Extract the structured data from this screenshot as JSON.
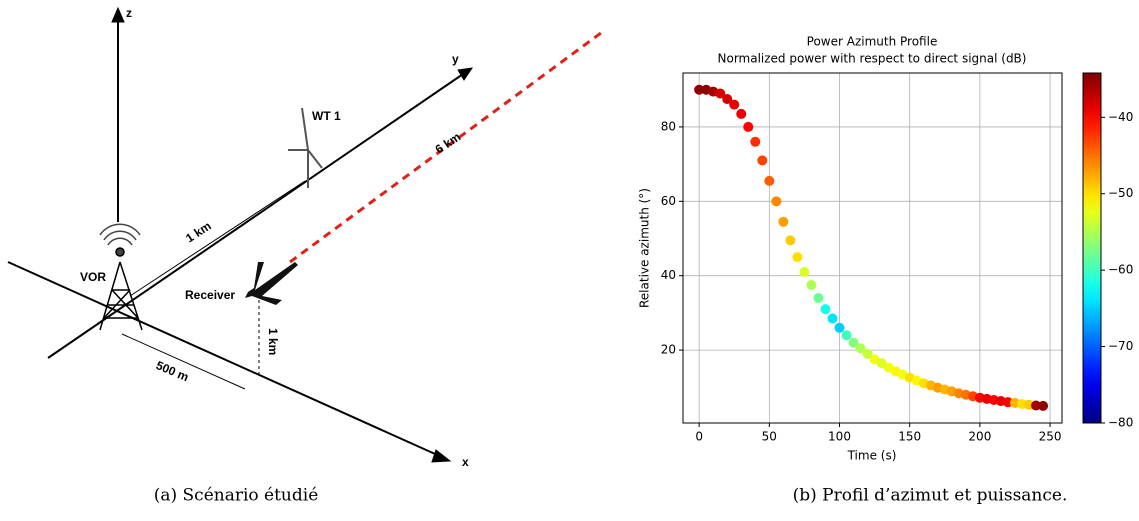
{
  "diagram": {
    "z_axis": "z",
    "y_axis": "y",
    "x_axis": "x",
    "turbine": "WT 1",
    "range": "6 km",
    "turbine_distance": "1 km",
    "beacon": "VOR",
    "receiver": "Receiver",
    "offset": "500 m",
    "altitude": "1 km"
  },
  "captions": [
    "(a) Scénario étudié",
    "(b) Profil d’azimut et puissance."
  ],
  "chart_data": {
    "type": "scatter",
    "title": "Power Azimuth Profile",
    "subtitle": "Normalized power with respect to direct signal (dB)",
    "xlabel": "Time (s)",
    "ylabel": "Relative azimuth (°)",
    "colormap": "jet",
    "grid": true,
    "xlim": [
      -11.5,
      258.5
    ],
    "xticks": [
      0,
      50,
      100,
      150,
      200,
      250
    ],
    "ylim": [
      0.4,
      94.5
    ],
    "yticks": [
      20,
      40,
      60,
      80
    ],
    "clim": [
      -80,
      -34.2
    ],
    "cticks": [
      {
        "value": -40,
        "label": "−40"
      },
      {
        "value": -50,
        "label": "−50"
      },
      {
        "value": -60,
        "label": "−60"
      },
      {
        "value": -70,
        "label": "−70"
      },
      {
        "value": -80,
        "label": "−80"
      }
    ],
    "x": [
      0,
      5,
      10,
      15,
      20,
      25,
      30,
      35,
      40,
      45,
      50,
      55,
      60,
      65,
      70,
      75,
      80,
      85,
      90,
      95,
      100,
      105,
      110,
      115,
      120,
      125,
      130,
      135,
      140,
      145,
      150,
      155,
      160,
      165,
      170,
      175,
      180,
      185,
      190,
      195,
      200,
      205,
      210,
      215,
      220,
      225,
      230,
      235,
      240,
      245
    ],
    "y": [
      90,
      90,
      89.5,
      89,
      87.5,
      86,
      83.5,
      80,
      76,
      71,
      65.5,
      60,
      54.5,
      49.5,
      45,
      41,
      37.5,
      34,
      31,
      28.5,
      26,
      24,
      22,
      20.5,
      19,
      17.5,
      16.5,
      15.3,
      14.3,
      13.4,
      12.6,
      11.8,
      11.1,
      10.5,
      9.9,
      9.4,
      8.9,
      8.4,
      8,
      7.6,
      7.2,
      6.9,
      6.6,
      6.3,
      6,
      5.8,
      5.5,
      5.3,
      5.1,
      5
    ],
    "power": [
      -35,
      -35,
      -36,
      -38,
      -38,
      -39,
      -39,
      -40,
      -42,
      -43,
      -44,
      -46,
      -47,
      -49,
      -50,
      -53,
      -55,
      -58,
      -62,
      -64,
      -65,
      -60,
      -57,
      -55,
      -54,
      -52,
      -53,
      -52,
      -51,
      -52,
      -50,
      -51,
      -50,
      -48,
      -47,
      -48,
      -47,
      -46,
      -45,
      -43,
      -40,
      -39,
      -40,
      -39,
      -40,
      -48,
      -50,
      -49,
      -36,
      -35
    ]
  }
}
